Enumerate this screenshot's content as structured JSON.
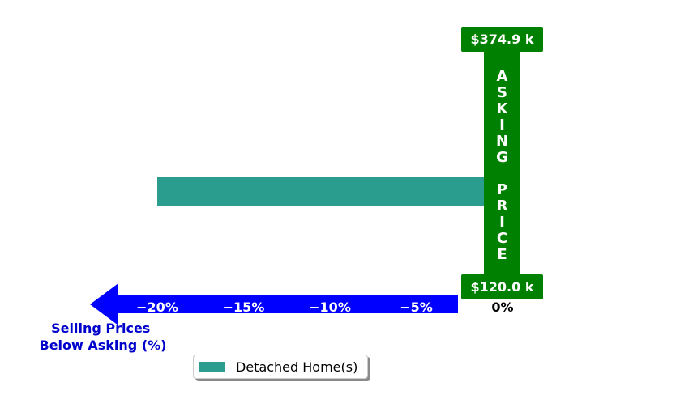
{
  "chart_data": {
    "type": "bar",
    "orientation": "horizontal",
    "series": [
      {
        "name": "Detached Home(s)",
        "values": [
          1.0,
          -20.0
        ]
      }
    ],
    "categories": [
      "",
      ""
    ],
    "xlim": [
      -20.5,
      1.5
    ],
    "x_ticks": [
      -20,
      -15,
      -10,
      -5
    ],
    "x_tick_labels": [
      "−20%",
      "−15%",
      "−10%",
      "−5%"
    ],
    "zero_label": "0%",
    "xlabel": "Selling Prices\nBelow Asking (%)",
    "asking_price_top": "$374.9 k",
    "asking_price_bottom": "$120.0 k",
    "asking_letters": [
      "A",
      "S",
      "K",
      "I",
      "N",
      "G",
      "",
      "P",
      "R",
      "I",
      "C",
      "E"
    ],
    "colors": {
      "bar": "#2a9d8f",
      "asking": "#008000",
      "arrow": "#0000ff",
      "axis_label": "#0000cc"
    },
    "legend": {
      "label": "Detached Home(s)",
      "placement": "bottom-center"
    }
  }
}
